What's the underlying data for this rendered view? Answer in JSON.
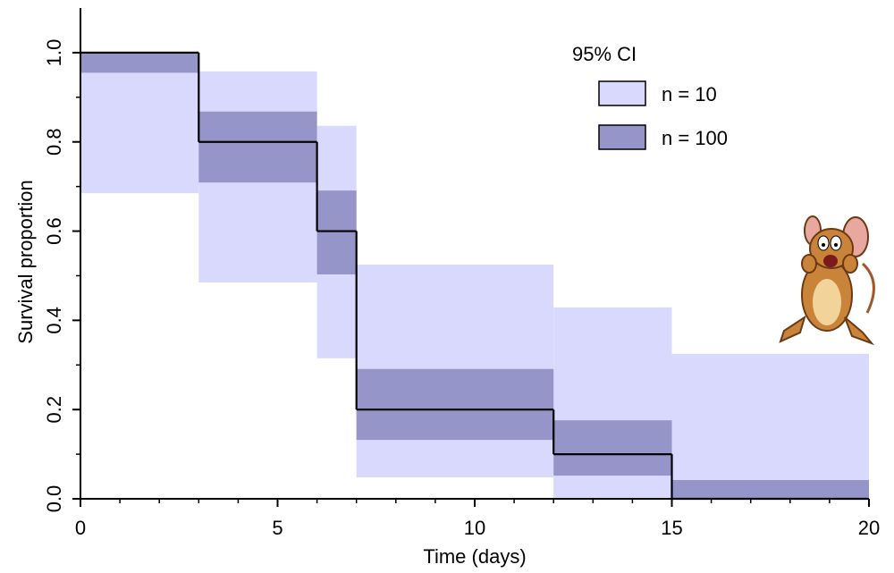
{
  "chart_data": {
    "type": "step",
    "xlabel": "Time (days)",
    "ylabel": "Survival proportion",
    "x": [
      0,
      3,
      6,
      7,
      12,
      15
    ],
    "values": [
      1.0,
      0.8,
      0.6,
      0.2,
      0.1,
      0.0
    ],
    "line_color": "#000000",
    "legend_title": "95% CI",
    "bands": [
      {
        "name": "n = 10",
        "color": "#d9d9fd",
        "lower": [
          0.685,
          0.485,
          0.315,
          0.048,
          0.0,
          0.0
        ],
        "upper": [
          1.0,
          0.958,
          0.836,
          0.525,
          0.429,
          0.325
        ]
      },
      {
        "name": "n = 100",
        "color": "#9595c9",
        "lower": [
          0.955,
          0.709,
          0.503,
          0.132,
          0.052,
          0.0
        ],
        "upper": [
          1.0,
          0.868,
          0.691,
          0.291,
          0.176,
          0.042
        ]
      }
    ],
    "xlim": [
      0,
      20
    ],
    "ylim": [
      0,
      1.1
    ],
    "xticks": [
      0,
      5,
      10,
      15,
      20
    ],
    "yticks": [
      {
        "value": 0,
        "label": "0.0"
      },
      0.2,
      0.4,
      0.6,
      0.8,
      {
        "value": 1,
        "label": "1.0"
      }
    ]
  }
}
